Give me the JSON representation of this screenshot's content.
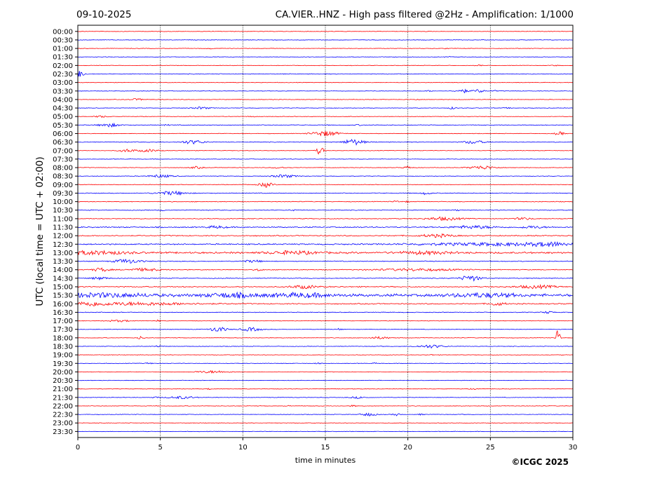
{
  "header": {
    "date": "09-10-2025",
    "title": "CA.VIER..HNZ - High pass filtered @2Hz - Amplification: 1/1000"
  },
  "copyright": "©ICGC 2025",
  "chart_data": {
    "type": "line",
    "subtype": "helicorder",
    "xlabel": "time in minutes",
    "ylabel": "UTC (local time = UTC + 02:00)",
    "xlim": [
      0,
      30
    ],
    "xticks": [
      0,
      5,
      10,
      15,
      20,
      25,
      30
    ],
    "x_gridlines": [
      5,
      10,
      15,
      20,
      25
    ],
    "grid": "vertical dotted",
    "row_colors": [
      "#ff0000",
      "#0000ff"
    ],
    "rows": [
      {
        "label": "00:00",
        "noise": 0.3,
        "events": []
      },
      {
        "label": "00:30",
        "noise": 0.3,
        "events": []
      },
      {
        "label": "01:00",
        "noise": 0.3,
        "events": [
          [
            8.1,
            0.8,
            0.2
          ],
          [
            22.3,
            0.6,
            0.2
          ]
        ]
      },
      {
        "label": "01:30",
        "noise": 0.3,
        "events": [
          [
            22.5,
            0.8,
            0.2
          ]
        ]
      },
      {
        "label": "02:00",
        "noise": 0.3,
        "events": [
          [
            24.3,
            0.7,
            0.2
          ],
          [
            29.0,
            0.6,
            0.2
          ]
        ]
      },
      {
        "label": "02:30",
        "noise": 0.4,
        "events": [
          [
            0.1,
            4.5,
            0.3
          ]
        ]
      },
      {
        "label": "03:00",
        "noise": 0.3,
        "events": []
      },
      {
        "label": "03:30",
        "noise": 0.3,
        "events": [
          [
            21.3,
            0.8,
            0.2
          ],
          [
            23.3,
            2.5,
            0.4
          ],
          [
            24.3,
            2.5,
            0.3
          ],
          [
            25.3,
            0.8,
            0.2
          ]
        ]
      },
      {
        "label": "04:00",
        "noise": 0.3,
        "events": [
          [
            3.6,
            1.2,
            0.4
          ],
          [
            20.5,
            0.6,
            0.2
          ]
        ]
      },
      {
        "label": "04:30",
        "noise": 0.3,
        "events": [
          [
            7.5,
            1.5,
            0.5
          ],
          [
            22.7,
            1.5,
            0.2
          ],
          [
            26.0,
            0.7,
            0.2
          ]
        ]
      },
      {
        "label": "05:00",
        "noise": 0.3,
        "events": [
          [
            1.4,
            1.2,
            0.4
          ],
          [
            10.5,
            0.6,
            0.3
          ]
        ]
      },
      {
        "label": "05:30",
        "noise": 0.4,
        "events": [
          [
            1.9,
            2.5,
            0.6
          ],
          [
            5.4,
            0.8,
            0.2
          ],
          [
            17.0,
            0.6,
            0.2
          ]
        ]
      },
      {
        "label": "06:00",
        "noise": 0.3,
        "events": [
          [
            15.0,
            3.5,
            0.8
          ],
          [
            29.2,
            2.2,
            0.3
          ]
        ]
      },
      {
        "label": "06:30",
        "noise": 0.4,
        "events": [
          [
            7.0,
            2.5,
            0.7
          ],
          [
            16.7,
            4.0,
            0.6
          ],
          [
            24.0,
            2.2,
            0.6
          ]
        ]
      },
      {
        "label": "07:00",
        "noise": 0.3,
        "events": [
          [
            3.0,
            2.0,
            0.5
          ],
          [
            4.3,
            1.8,
            0.6
          ],
          [
            14.7,
            6.5,
            0.2
          ]
        ]
      },
      {
        "label": "07:30",
        "noise": 0.3,
        "events": []
      },
      {
        "label": "08:00",
        "noise": 0.3,
        "events": [
          [
            7.2,
            1.5,
            0.4
          ],
          [
            12.2,
            1.2,
            0.4
          ],
          [
            20.0,
            1.8,
            0.3
          ],
          [
            24.5,
            2.5,
            0.8
          ]
        ]
      },
      {
        "label": "08:30",
        "noise": 0.3,
        "events": [
          [
            5.0,
            2.0,
            0.7
          ],
          [
            12.5,
            2.0,
            0.7
          ]
        ]
      },
      {
        "label": "09:00",
        "noise": 0.3,
        "events": [
          [
            11.4,
            3.5,
            0.4
          ]
        ]
      },
      {
        "label": "09:30",
        "noise": 0.4,
        "events": [
          [
            5.7,
            2.5,
            0.9
          ],
          [
            21.1,
            1.8,
            0.3
          ]
        ]
      },
      {
        "label": "10:00",
        "noise": 0.4,
        "events": [
          [
            19.3,
            1.2,
            0.2
          ],
          [
            20.0,
            0.8,
            0.2
          ]
        ]
      },
      {
        "label": "10:30",
        "noise": 0.4,
        "events": [
          [
            5.1,
            0.8,
            0.2
          ],
          [
            13.0,
            0.9,
            0.2
          ],
          [
            23.0,
            0.8,
            0.2
          ]
        ]
      },
      {
        "label": "11:00",
        "noise": 0.45,
        "events": [
          [
            22.2,
            2.2,
            1.0
          ],
          [
            27.0,
            1.5,
            0.5
          ]
        ]
      },
      {
        "label": "11:30",
        "noise": 0.65,
        "events": [
          [
            8.4,
            1.5,
            0.6
          ],
          [
            24.0,
            2.0,
            1.2
          ],
          [
            27.5,
            1.5,
            0.8
          ]
        ]
      },
      {
        "label": "12:00",
        "noise": 0.6,
        "events": [
          [
            21.8,
            2.0,
            1.0
          ]
        ]
      },
      {
        "label": "12:30",
        "noise": 0.7,
        "events": [
          [
            25.5,
            1.8,
            5.0
          ],
          [
            28.6,
            1.8,
            1.0
          ]
        ]
      },
      {
        "label": "13:00",
        "noise": 1.0,
        "events": [
          [
            1.0,
            2.2,
            2.0
          ],
          [
            13.0,
            2.0,
            1.5
          ],
          [
            21.0,
            1.8,
            1.5
          ]
        ]
      },
      {
        "label": "13:30",
        "noise": 0.45,
        "events": [
          [
            3.0,
            2.8,
            0.8
          ],
          [
            10.6,
            1.5,
            0.6
          ]
        ]
      },
      {
        "label": "14:00",
        "noise": 0.45,
        "events": [
          [
            1.4,
            2.5,
            0.5
          ],
          [
            4.0,
            1.8,
            1.0
          ],
          [
            11.0,
            1.8,
            0.2
          ],
          [
            20.5,
            1.5,
            2.5
          ]
        ]
      },
      {
        "label": "14:30",
        "noise": 0.45,
        "events": [
          [
            1.3,
            1.8,
            0.5
          ],
          [
            23.8,
            3.8,
            0.6
          ]
        ]
      },
      {
        "label": "15:00",
        "noise": 0.6,
        "events": [
          [
            13.7,
            2.2,
            0.8
          ],
          [
            27.8,
            2.0,
            1.2
          ]
        ]
      },
      {
        "label": "15:30",
        "noise": 1.5,
        "events": [
          [
            1.5,
            2.2,
            3.0
          ],
          [
            9.3,
            2.5,
            1.5
          ],
          [
            13.5,
            2.2,
            2.0
          ],
          [
            24.5,
            2.2,
            2.0
          ]
        ]
      },
      {
        "label": "16:00",
        "noise": 0.6,
        "events": [
          [
            0.7,
            2.2,
            0.8
          ],
          [
            3.5,
            2.0,
            3.5
          ],
          [
            25.4,
            2.2,
            0.5
          ]
        ]
      },
      {
        "label": "16:30",
        "noise": 0.4,
        "events": [
          [
            28.5,
            1.5,
            0.3
          ]
        ]
      },
      {
        "label": "17:00",
        "noise": 0.3,
        "events": [
          [
            2.5,
            1.2,
            0.8
          ],
          [
            4.8,
            1.2,
            0.2
          ]
        ]
      },
      {
        "label": "17:30",
        "noise": 0.3,
        "events": [
          [
            8.5,
            3.5,
            0.5
          ],
          [
            10.5,
            2.5,
            0.6
          ],
          [
            15.8,
            1.0,
            0.2
          ]
        ]
      },
      {
        "label": "18:00",
        "noise": 0.3,
        "events": [
          [
            3.8,
            2.0,
            0.2
          ],
          [
            18.3,
            1.5,
            0.6
          ],
          [
            29.1,
            14.0,
            0.12
          ]
        ]
      },
      {
        "label": "18:30",
        "noise": 0.3,
        "events": [
          [
            4.9,
            1.0,
            0.3
          ],
          [
            21.4,
            2.2,
            0.8
          ]
        ]
      },
      {
        "label": "19:00",
        "noise": 0.3,
        "events": [
          [
            21.5,
            0.6,
            0.2
          ]
        ]
      },
      {
        "label": "19:30",
        "noise": 0.3,
        "events": [
          [
            4.3,
            0.8,
            0.3
          ],
          [
            14.5,
            0.7,
            0.2
          ],
          [
            18.0,
            0.7,
            0.2
          ]
        ]
      },
      {
        "label": "20:00",
        "noise": 0.3,
        "events": [
          [
            8.2,
            1.6,
            1.0
          ]
        ]
      },
      {
        "label": "20:30",
        "noise": 0.3,
        "events": []
      },
      {
        "label": "21:00",
        "noise": 0.3,
        "events": [
          [
            8.0,
            0.8,
            0.2
          ],
          [
            24.0,
            0.8,
            0.2
          ]
        ]
      },
      {
        "label": "21:30",
        "noise": 0.3,
        "events": [
          [
            4.7,
            0.9,
            0.2
          ],
          [
            6.3,
            1.8,
            0.8
          ],
          [
            17.0,
            1.2,
            0.5
          ]
        ]
      },
      {
        "label": "22:00",
        "noise": 0.3,
        "events": [
          [
            12.8,
            1.0,
            0.2
          ],
          [
            16.7,
            1.0,
            0.2
          ]
        ]
      },
      {
        "label": "22:30",
        "noise": 0.3,
        "events": [
          [
            17.6,
            2.0,
            0.5
          ],
          [
            19.3,
            1.8,
            0.2
          ],
          [
            20.8,
            0.8,
            0.2
          ]
        ]
      },
      {
        "label": "23:00",
        "noise": 0.3,
        "events": []
      },
      {
        "label": "23:30",
        "noise": 0.3,
        "events": []
      }
    ]
  }
}
